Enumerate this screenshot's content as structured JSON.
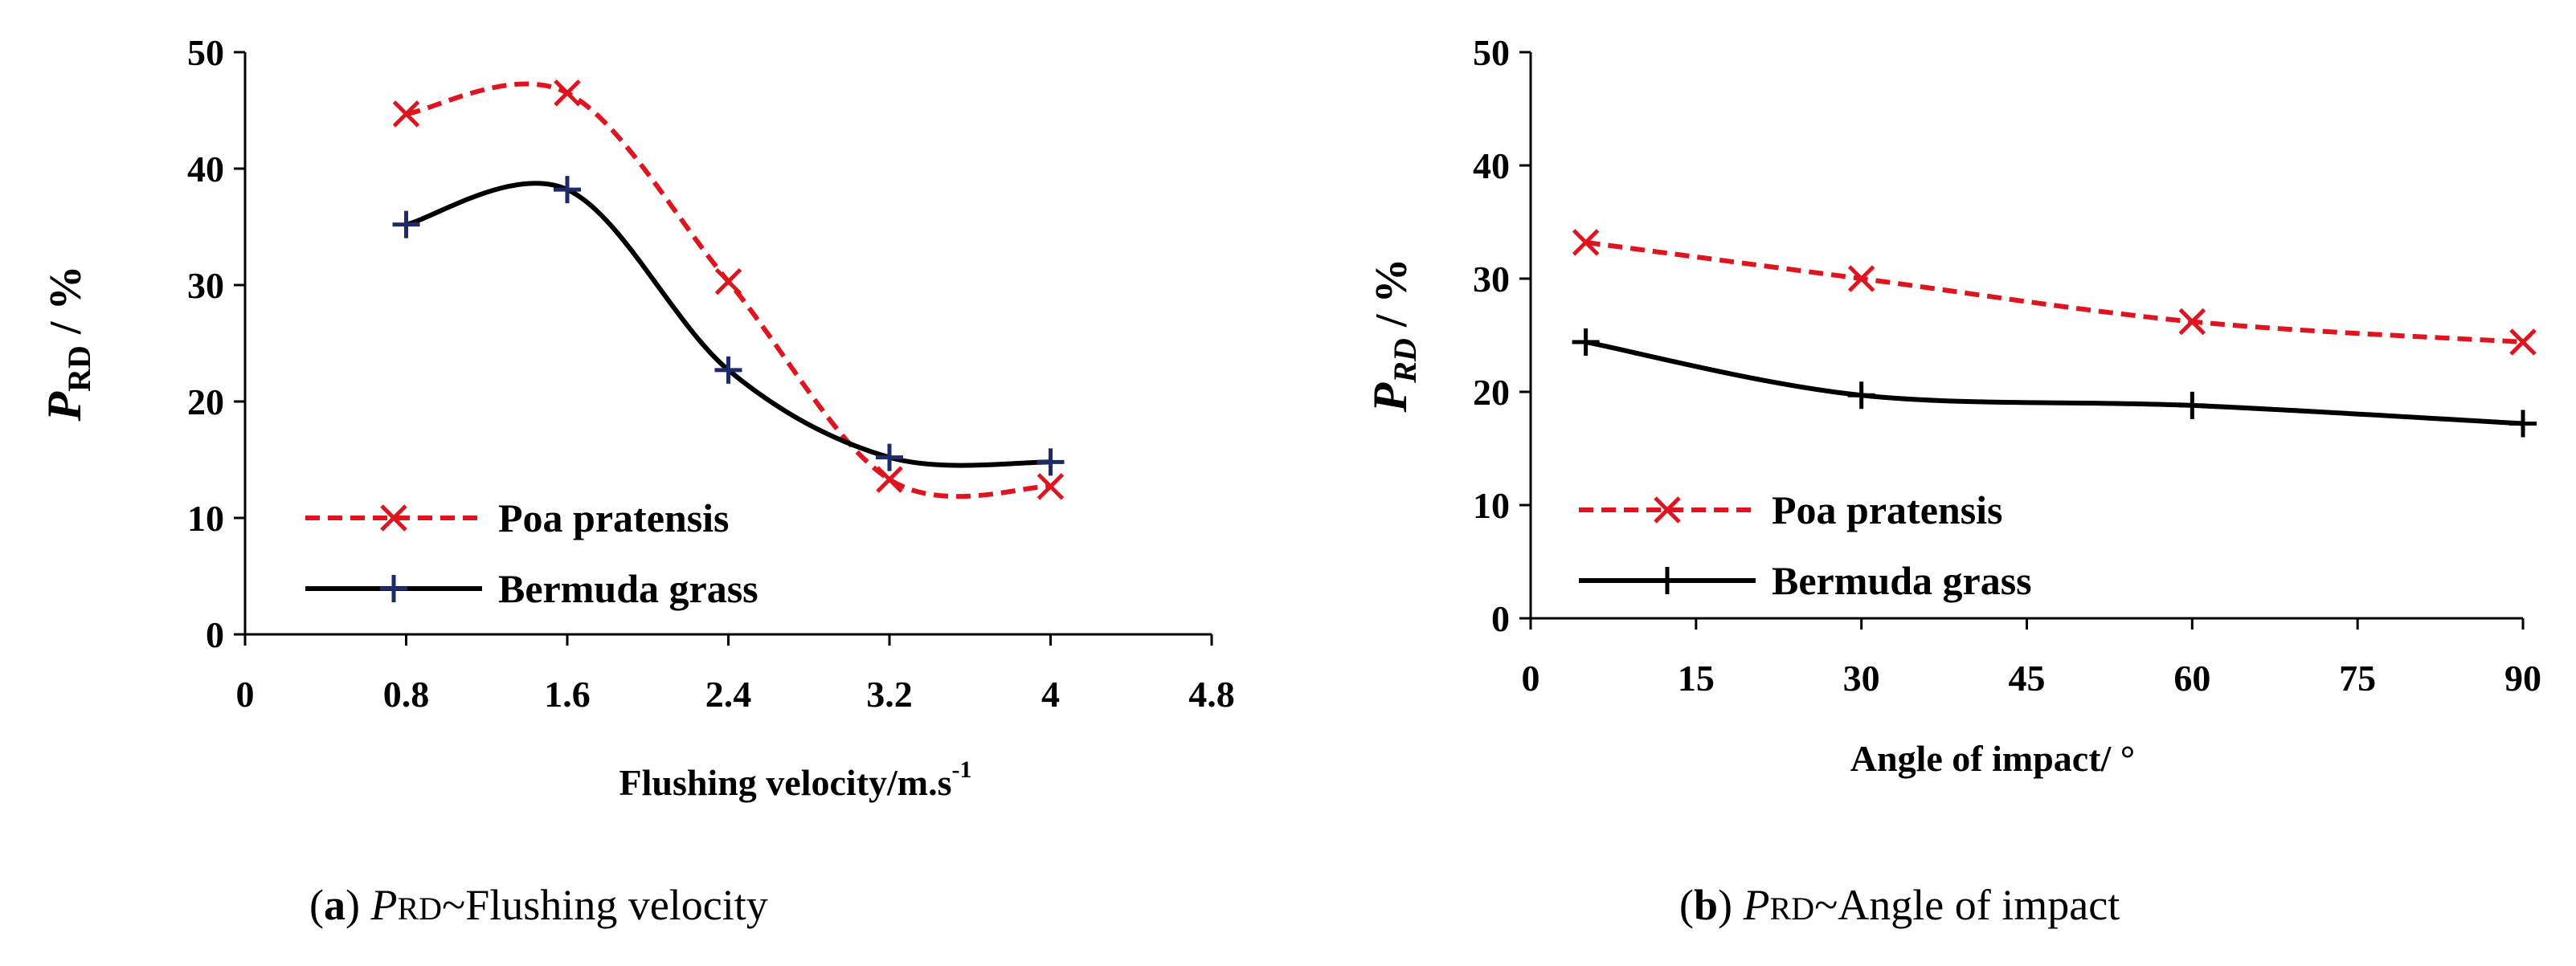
{
  "colors": {
    "series_a": "#e0141e",
    "series_b": "#000000",
    "marker_b": "#1f2a6b"
  },
  "chart_data": [
    {
      "type": "line",
      "panel": "a",
      "caption": {
        "label": "a",
        "prefix_var": "P",
        "prefix_sub": "RD",
        "text": "~Flushing velocity"
      },
      "xlabel": {
        "text": "Flushing velocity/m.s",
        "sup": "-1"
      },
      "ylabel": {
        "var": "P",
        "sub": "RD",
        "unit": "/ %"
      },
      "xlim": [
        0,
        4.8
      ],
      "ylim": [
        0,
        50
      ],
      "xticks": [
        0,
        0.8,
        1.6,
        2.4,
        3.2,
        4,
        4.8
      ],
      "xtick_labels": [
        "0",
        "0.8",
        "1.6",
        "2.4",
        "3.2",
        "4",
        "4.8"
      ],
      "yticks": [
        0,
        10,
        20,
        30,
        40,
        50
      ],
      "ytick_labels": [
        "0",
        "10",
        "20",
        "30",
        "40",
        "50"
      ],
      "legend_position": "bottom-left",
      "smooth": true,
      "series": [
        {
          "name": "Poa pratensis",
          "marker": "x",
          "style": "dashed",
          "x": [
            0.8,
            1.6,
            2.4,
            3.2,
            4
          ],
          "values": [
            44.7,
            46.5,
            30.3,
            13.3,
            12.7
          ]
        },
        {
          "name": "Bermuda grass",
          "marker": "+",
          "style": "solid",
          "x": [
            0.8,
            1.6,
            2.4,
            3.2,
            4
          ],
          "values": [
            35.2,
            38.2,
            22.7,
            15.2,
            14.8
          ]
        }
      ]
    },
    {
      "type": "line",
      "panel": "b",
      "caption": {
        "label": "b",
        "prefix_var": "P",
        "prefix_sub": "RD",
        "text": "~Angle of impact"
      },
      "xlabel": {
        "text": "Angle of impact/ °",
        "sup": ""
      },
      "ylabel": {
        "var": "P",
        "sub": "RD",
        "unit": "/ %"
      },
      "xlim": [
        0,
        90
      ],
      "ylim": [
        0,
        50
      ],
      "xticks": [
        0,
        15,
        30,
        45,
        60,
        75,
        90
      ],
      "xtick_labels": [
        "0",
        "15",
        "30",
        "45",
        "60",
        "75",
        "90"
      ],
      "yticks": [
        0,
        10,
        20,
        30,
        40,
        50
      ],
      "ytick_labels": [
        "0",
        "10",
        "20",
        "30",
        "40",
        "50"
      ],
      "legend_position": "bottom-left",
      "smooth": true,
      "series": [
        {
          "name": "Poa pratensis",
          "marker": "x",
          "style": "dashed",
          "x": [
            5,
            30,
            60,
            90
          ],
          "values": [
            33.2,
            30.0,
            26.2,
            24.4
          ]
        },
        {
          "name": "Bermuda grass",
          "marker": "+",
          "style": "solid",
          "x": [
            5,
            30,
            60,
            90
          ],
          "values": [
            24.4,
            19.7,
            18.8,
            17.2
          ]
        }
      ]
    }
  ]
}
